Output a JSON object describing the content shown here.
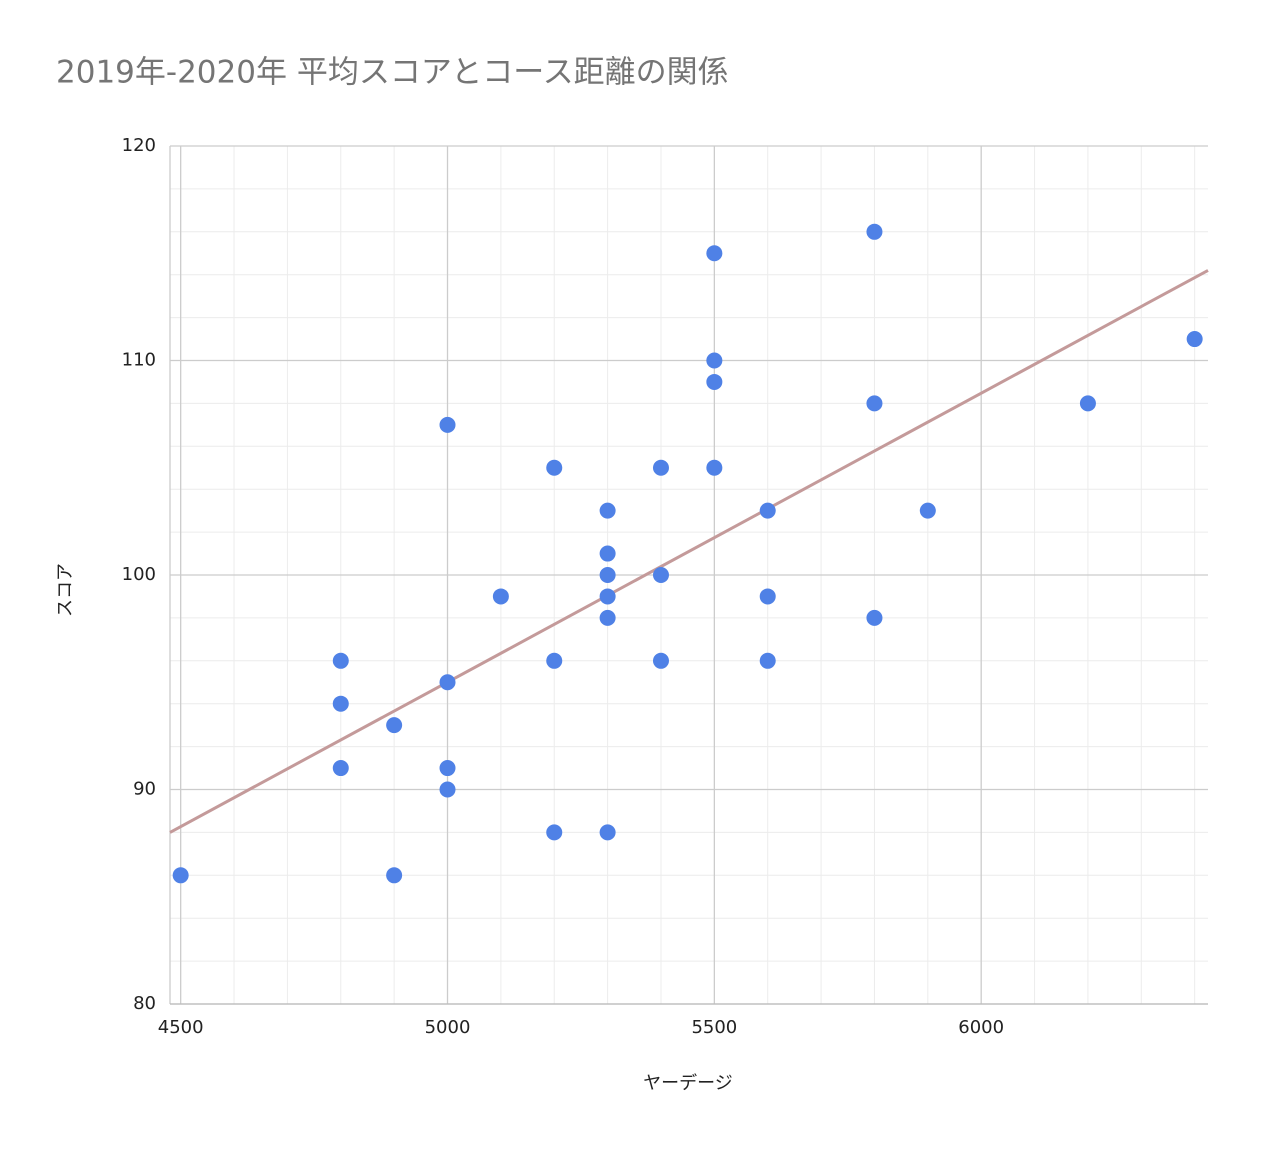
{
  "chart_data": {
    "type": "scatter",
    "title": "2019年-2020年 平均スコアとコース距離の関係",
    "x_label": "ヤーデージ",
    "y_label": "スコア",
    "series": [
      {
        "color": "#4f81e6",
        "x": [
          4500,
          4800,
          4800,
          4800,
          4900,
          4900,
          5000,
          5000,
          5000,
          5000,
          5100,
          5200,
          5200,
          5200,
          5300,
          5300,
          5300,
          5300,
          5300,
          5300,
          5400,
          5400,
          5400,
          5500,
          5500,
          5500,
          5500,
          5600,
          5600,
          5600,
          5800,
          5800,
          5800,
          5900,
          6200,
          6400
        ],
        "values": [
          86,
          96,
          94,
          91,
          93,
          86,
          107,
          95,
          91,
          90,
          99,
          105,
          96,
          88,
          103,
          101,
          100,
          99,
          98,
          88,
          105,
          100,
          96,
          115,
          110,
          109,
          105,
          103,
          99,
          96,
          116,
          108,
          98,
          103,
          108,
          111
        ]
      }
    ],
    "trendline": {
      "color": "#c49a9a",
      "x": [
        4480,
        6425
      ],
      "y": [
        88,
        114.2
      ]
    },
    "xlim": [
      4480,
      6425
    ],
    "ylim": [
      80,
      120
    ],
    "xticks": [
      4500,
      5000,
      5500,
      6000
    ],
    "yticks": [
      80,
      90,
      100,
      110,
      120
    ],
    "x_minor_ticks": [
      4600,
      4700,
      4800,
      4900,
      5100,
      5200,
      5300,
      5400,
      5600,
      5700,
      5800,
      5900,
      6100,
      6200,
      6300,
      6400
    ],
    "y_minor_ticks": [
      82,
      84,
      86,
      88,
      92,
      94,
      96,
      98,
      102,
      104,
      106,
      108,
      112,
      114,
      116,
      118
    ],
    "grid": true
  }
}
